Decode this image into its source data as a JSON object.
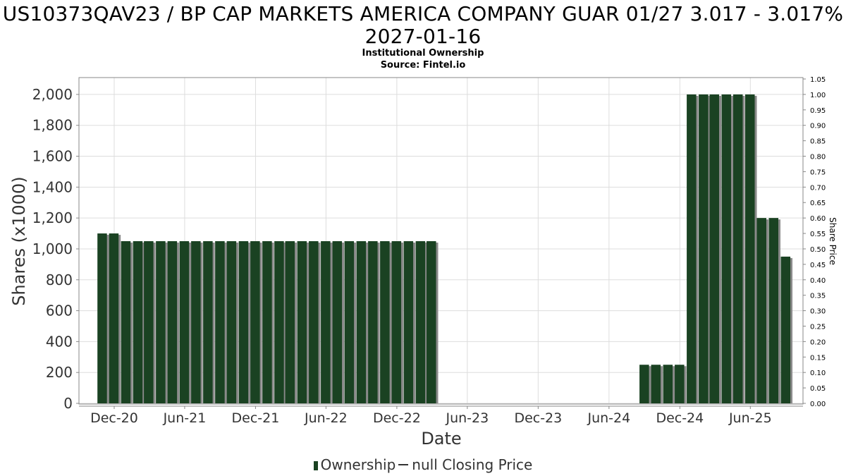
{
  "title": "US10373QAV23 / BP CAP MARKETS AMERICA COMPANY GUAR 01/27 3.017 - 3.017% 2027-01-16",
  "subtitle": "Institutional Ownership",
  "source": "Source: Fintel.io",
  "legend": {
    "ownership": "Ownership",
    "price": "null Closing Price"
  },
  "colors": {
    "bar": "#1a4222",
    "bar_shadow": "#8a8a8a",
    "grid": "#dddddd",
    "frame": "#888888"
  },
  "chart_data": {
    "type": "bar",
    "xlabel": "Date",
    "ylabel": "Shares (x1000)",
    "y2label": "Share Price",
    "ylim": [
      0,
      2100
    ],
    "y2lim": [
      0,
      1.05
    ],
    "xlim": [
      "2020-09-01",
      "2025-10-15"
    ],
    "yticks": [
      "0",
      "200",
      "400",
      "600",
      "800",
      "1,000",
      "1,200",
      "1,400",
      "1,600",
      "1,800",
      "2,000"
    ],
    "y2ticks": [
      "0.00",
      "0.05",
      "0.10",
      "0.15",
      "0.20",
      "0.25",
      "0.30",
      "0.35",
      "0.40",
      "0.45",
      "0.50",
      "0.55",
      "0.60",
      "0.65",
      "0.70",
      "0.75",
      "0.80",
      "0.85",
      "0.90",
      "0.95",
      "1.00",
      "1.05"
    ],
    "xticks": [
      {
        "date": "2020-12-01",
        "label": "Dec-20"
      },
      {
        "date": "2021-06-01",
        "label": "Jun-21"
      },
      {
        "date": "2021-12-01",
        "label": "Dec-21"
      },
      {
        "date": "2022-06-01",
        "label": "Jun-22"
      },
      {
        "date": "2022-12-01",
        "label": "Dec-22"
      },
      {
        "date": "2023-06-01",
        "label": "Jun-23"
      },
      {
        "date": "2023-12-01",
        "label": "Dec-23"
      },
      {
        "date": "2024-06-01",
        "label": "Jun-24"
      },
      {
        "date": "2024-12-01",
        "label": "Dec-24"
      },
      {
        "date": "2025-06-01",
        "label": "Jun-25"
      }
    ],
    "series": [
      {
        "name": "Ownership",
        "points": [
          {
            "date": "2020-10-31",
            "value": 1100
          },
          {
            "date": "2020-11-30",
            "value": 1100
          },
          {
            "date": "2020-12-31",
            "value": 1050
          },
          {
            "date": "2021-01-31",
            "value": 1050
          },
          {
            "date": "2021-02-28",
            "value": 1050
          },
          {
            "date": "2021-03-31",
            "value": 1050
          },
          {
            "date": "2021-04-30",
            "value": 1050
          },
          {
            "date": "2021-05-31",
            "value": 1050
          },
          {
            "date": "2021-06-30",
            "value": 1050
          },
          {
            "date": "2021-07-31",
            "value": 1050
          },
          {
            "date": "2021-08-31",
            "value": 1050
          },
          {
            "date": "2021-09-30",
            "value": 1050
          },
          {
            "date": "2021-10-31",
            "value": 1050
          },
          {
            "date": "2021-11-30",
            "value": 1050
          },
          {
            "date": "2021-12-31",
            "value": 1050
          },
          {
            "date": "2022-01-31",
            "value": 1050
          },
          {
            "date": "2022-02-28",
            "value": 1050
          },
          {
            "date": "2022-03-31",
            "value": 1050
          },
          {
            "date": "2022-04-30",
            "value": 1050
          },
          {
            "date": "2022-05-31",
            "value": 1050
          },
          {
            "date": "2022-06-30",
            "value": 1050
          },
          {
            "date": "2022-07-31",
            "value": 1050
          },
          {
            "date": "2022-08-31",
            "value": 1050
          },
          {
            "date": "2022-09-30",
            "value": 1050
          },
          {
            "date": "2022-10-31",
            "value": 1050
          },
          {
            "date": "2022-11-30",
            "value": 1050
          },
          {
            "date": "2022-12-31",
            "value": 1050
          },
          {
            "date": "2023-01-31",
            "value": 1050
          },
          {
            "date": "2023-02-28",
            "value": 1050
          },
          {
            "date": "2024-08-31",
            "value": 250
          },
          {
            "date": "2024-09-30",
            "value": 250
          },
          {
            "date": "2024-10-31",
            "value": 250
          },
          {
            "date": "2024-11-30",
            "value": 250
          },
          {
            "date": "2024-12-31",
            "value": 2000
          },
          {
            "date": "2025-01-31",
            "value": 2000
          },
          {
            "date": "2025-02-28",
            "value": 2000
          },
          {
            "date": "2025-03-31",
            "value": 2000
          },
          {
            "date": "2025-04-30",
            "value": 2000
          },
          {
            "date": "2025-05-31",
            "value": 2000
          },
          {
            "date": "2025-06-30",
            "value": 1200
          },
          {
            "date": "2025-07-31",
            "value": 1200
          },
          {
            "date": "2025-08-31",
            "value": 950
          }
        ]
      }
    ]
  }
}
